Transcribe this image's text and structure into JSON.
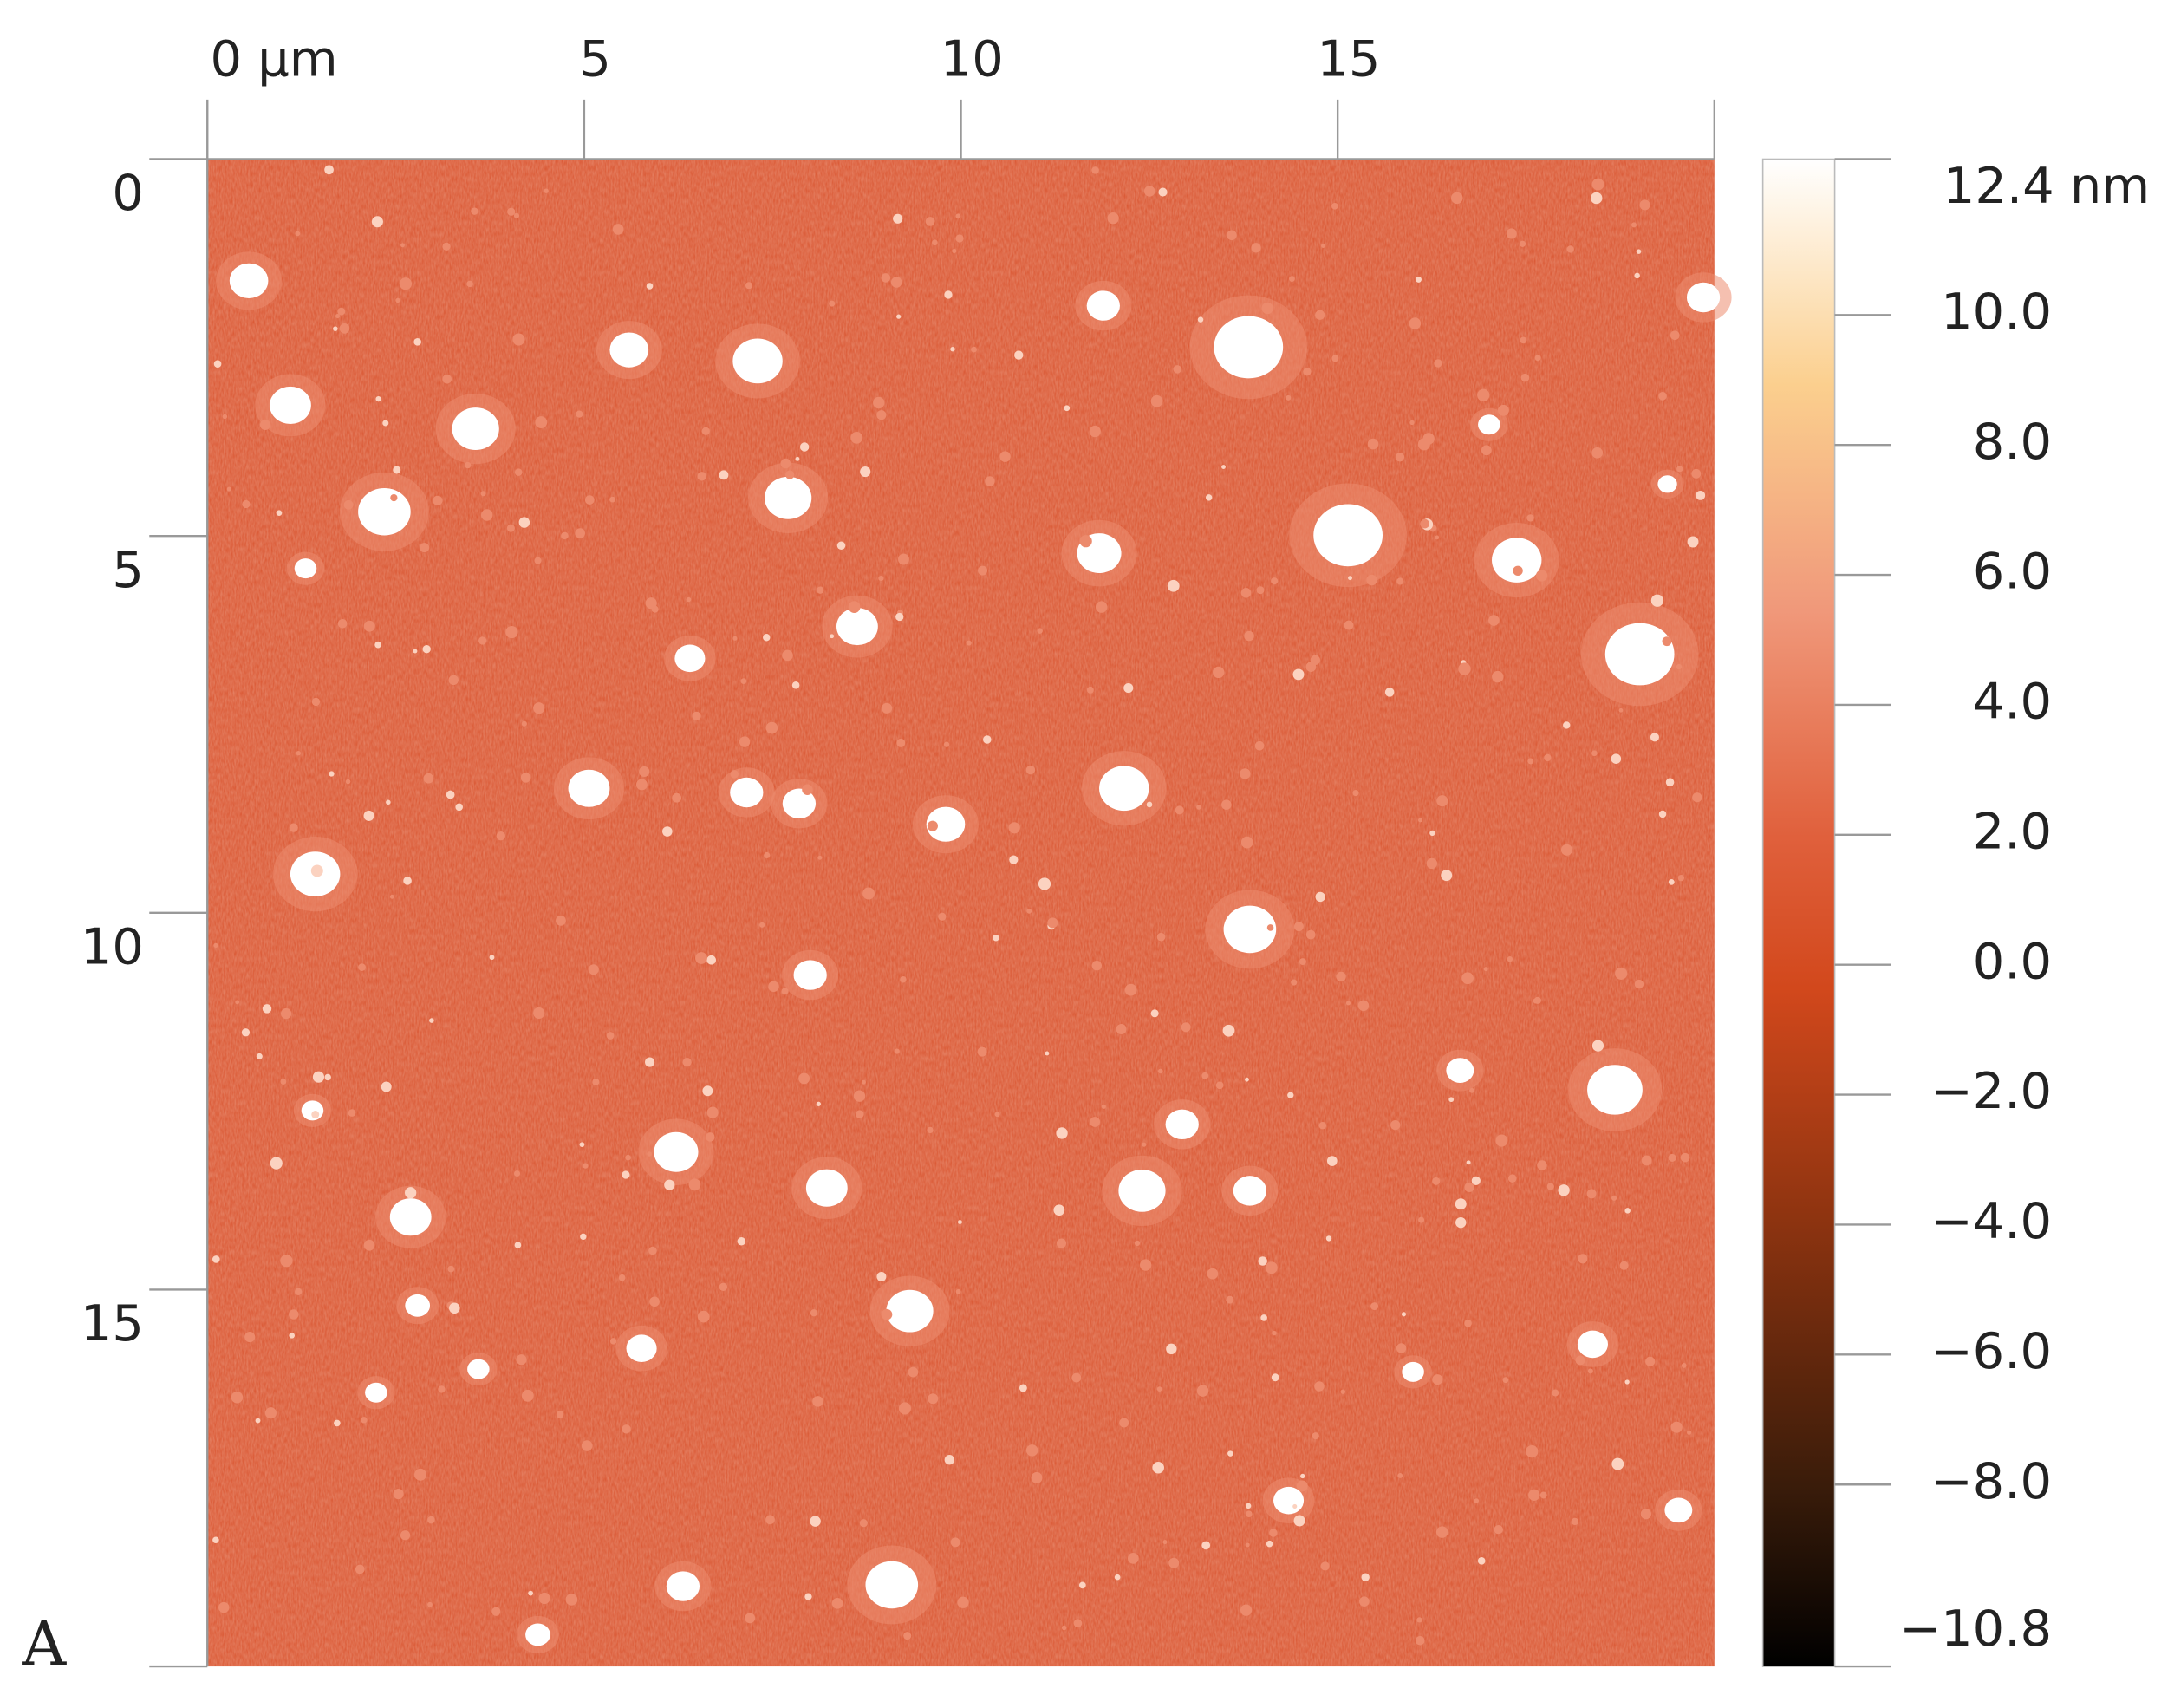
{
  "chart_data": {
    "type": "heatmap",
    "xlim": [
      0,
      20
    ],
    "xticks": [
      {
        "value": 0,
        "label": "0 µm"
      },
      5,
      10,
      15
    ],
    "ylim": [
      0,
      20
    ],
    "yticks": [
      0,
      5,
      10,
      15
    ],
    "colorbar": {
      "lim": [
        -10.8,
        12.4
      ],
      "ticks": [
        {
          "value": 12.4,
          "label": "12.4 nm"
        },
        {
          "value": 10,
          "label": "10.0"
        },
        {
          "value": 8,
          "label": "8.0"
        },
        {
          "value": 6,
          "label": "6.0"
        },
        {
          "value": 4,
          "label": "4.0"
        },
        {
          "value": 2,
          "label": "2.0"
        },
        {
          "value": 0,
          "label": "0.0"
        },
        {
          "value": -2,
          "label": "−2.0"
        },
        {
          "value": -4,
          "label": "−4.0"
        },
        {
          "value": -6,
          "label": "−6.0"
        },
        {
          "value": -8,
          "label": "−8.0"
        },
        {
          "value": -10.8,
          "label": "−10.8"
        }
      ]
    },
    "panel_label": "A"
  }
}
